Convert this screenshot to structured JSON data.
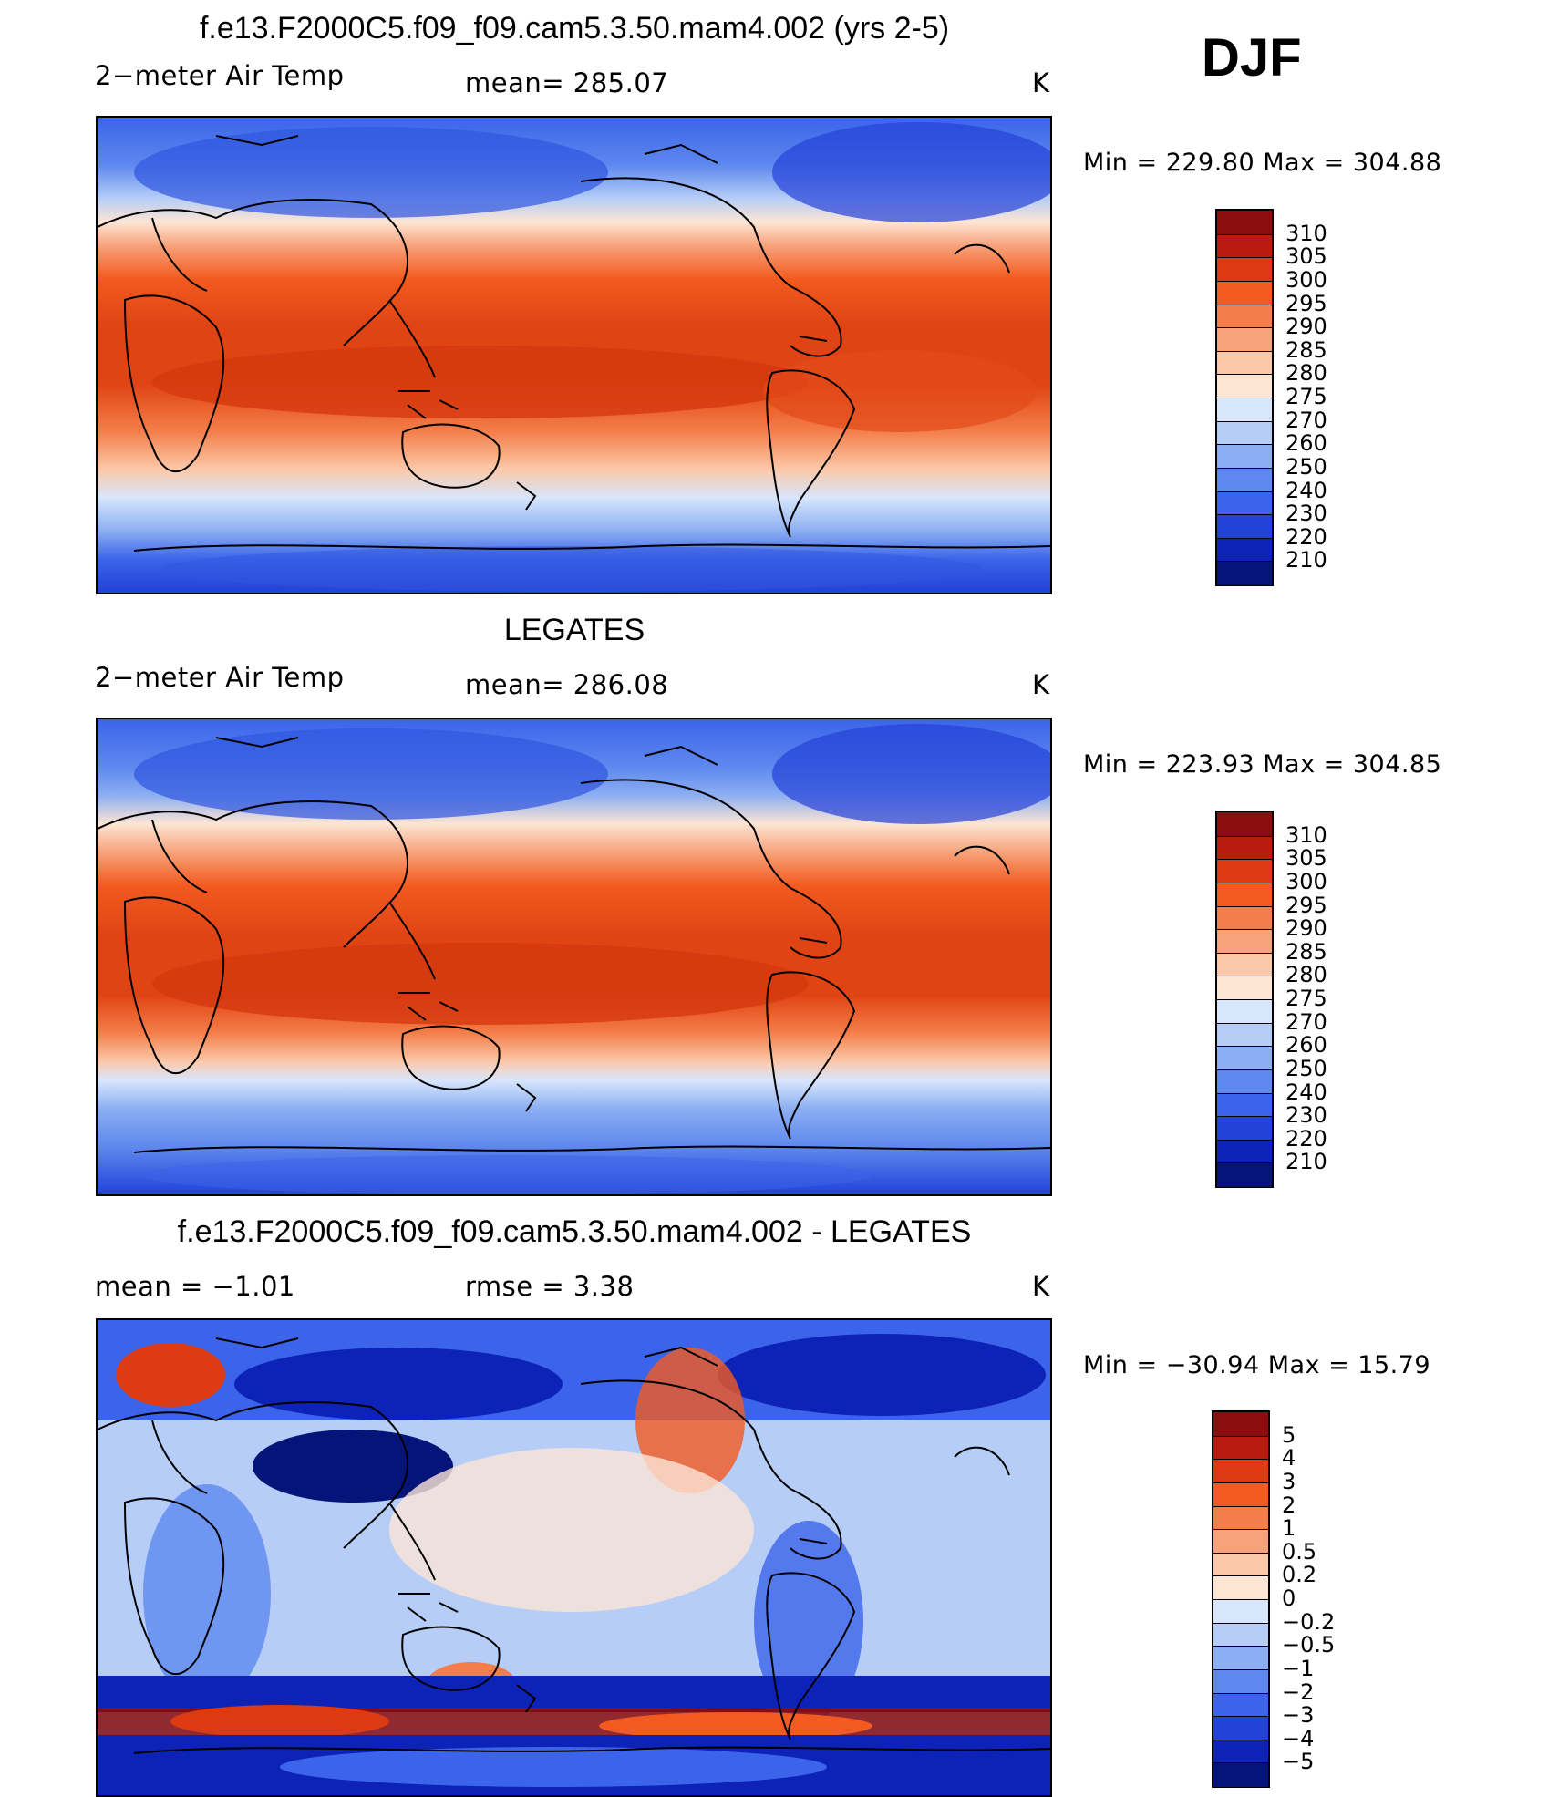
{
  "season": "DJF",
  "panels": [
    {
      "title": "f.e13.F2000C5.f09_f09.cam5.3.50.mam4.002 (yrs 2-5)",
      "left_label": "2−meter Air Temp",
      "center_label": "mean=  285.07",
      "units": "K",
      "minmax": "Min  =  229.80  Max  =  304.88",
      "colorbar": {
        "labels": [
          "310",
          "305",
          "300",
          "295",
          "290",
          "285",
          "280",
          "275",
          "270",
          "260",
          "250",
          "240",
          "230",
          "220",
          "210"
        ],
        "colors": [
          "#8b0d0d",
          "#b81c0e",
          "#dc3a12",
          "#f25a1f",
          "#f47e49",
          "#f7a27a",
          "#fbc8a9",
          "#fde5d4",
          "#d7e6fb",
          "#b5cdf7",
          "#8caef2",
          "#5e88ee",
          "#3b64ea",
          "#2342d8",
          "#0d23b8",
          "#051478"
        ]
      }
    },
    {
      "title": "LEGATES",
      "left_label": "2−meter Air Temp",
      "center_label": "mean=  286.08",
      "units": "K",
      "minmax": "Min  =  223.93  Max  =  304.85",
      "colorbar": {
        "labels": [
          "310",
          "305",
          "300",
          "295",
          "290",
          "285",
          "280",
          "275",
          "270",
          "260",
          "250",
          "240",
          "230",
          "220",
          "210"
        ],
        "colors": [
          "#8b0d0d",
          "#b81c0e",
          "#dc3a12",
          "#f25a1f",
          "#f47e49",
          "#f7a27a",
          "#fbc8a9",
          "#fde5d4",
          "#d7e6fb",
          "#b5cdf7",
          "#8caef2",
          "#5e88ee",
          "#3b64ea",
          "#2342d8",
          "#0d23b8",
          "#051478"
        ]
      }
    },
    {
      "title": "f.e13.F2000C5.f09_f09.cam5.3.50.mam4.002 - LEGATES",
      "left_label": "mean  =     −1.01",
      "center_label": "rmse  =      3.38",
      "units": "K",
      "minmax": "Min  =  −30.94  Max  =    15.79",
      "colorbar": {
        "labels": [
          "5",
          "4",
          "3",
          "2",
          "1",
          "0.5",
          "0.2",
          "0",
          "−0.2",
          "−0.5",
          "−1",
          "−2",
          "−3",
          "−4",
          "−5"
        ],
        "colors": [
          "#8b0d0d",
          "#b81c0e",
          "#dc3a12",
          "#f25a1f",
          "#f47e49",
          "#f7a27a",
          "#fbc8a9",
          "#fde5d4",
          "#d7e6fb",
          "#b5cdf7",
          "#8caef2",
          "#5e88ee",
          "#3b64ea",
          "#2342d8",
          "#0d23b8",
          "#051478"
        ]
      }
    }
  ]
}
